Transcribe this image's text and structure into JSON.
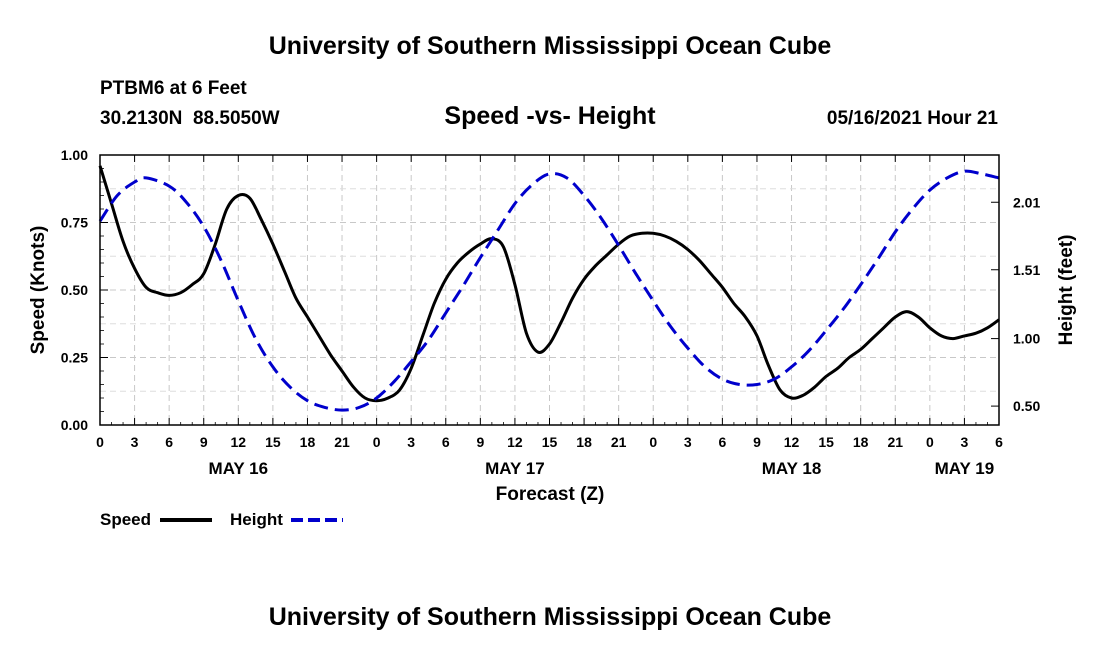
{
  "header": {
    "top_title": "University of Southern Mississippi Ocean Cube",
    "station": "PTBM6 at 6 Feet",
    "coords": "30.2130N  88.5050W",
    "chart_title": "Speed -vs- Height",
    "datetime": "05/16/2021 Hour 21",
    "bottom_title": "University of Southern Mississippi Ocean Cube"
  },
  "chart_data": {
    "type": "line",
    "title": "Speed -vs- Height",
    "xlabel": "Forecast (Z)",
    "ylabel_left": "Speed (Knots)",
    "ylabel_right": "Height (feet)",
    "x_range_hours": [
      0,
      78
    ],
    "ylim_left": [
      0,
      1.0
    ],
    "ylim_right": [
      0.36,
      2.36
    ],
    "left_ticks": [
      {
        "value": 0.0,
        "label": "0.00"
      },
      {
        "value": 0.25,
        "label": "0.25"
      },
      {
        "value": 0.5,
        "label": "0.50"
      },
      {
        "value": 0.75,
        "label": "0.75"
      },
      {
        "value": 1.0,
        "label": "1.00"
      }
    ],
    "right_ticks": [
      {
        "value": 0.5,
        "label": "0.50"
      },
      {
        "value": 1.0,
        "label": "1.00"
      },
      {
        "value": 1.51,
        "label": "1.51"
      },
      {
        "value": 2.01,
        "label": "2.01"
      }
    ],
    "x_ticks": [
      {
        "h": 0,
        "label": "0"
      },
      {
        "h": 3,
        "label": "3"
      },
      {
        "h": 6,
        "label": "6"
      },
      {
        "h": 9,
        "label": "9"
      },
      {
        "h": 12,
        "label": "12"
      },
      {
        "h": 15,
        "label": "15"
      },
      {
        "h": 18,
        "label": "18"
      },
      {
        "h": 21,
        "label": "21"
      },
      {
        "h": 24,
        "label": "0"
      },
      {
        "h": 27,
        "label": "3"
      },
      {
        "h": 30,
        "label": "6"
      },
      {
        "h": 33,
        "label": "9"
      },
      {
        "h": 36,
        "label": "12"
      },
      {
        "h": 39,
        "label": "15"
      },
      {
        "h": 42,
        "label": "18"
      },
      {
        "h": 45,
        "label": "21"
      },
      {
        "h": 48,
        "label": "0"
      },
      {
        "h": 51,
        "label": "3"
      },
      {
        "h": 54,
        "label": "6"
      },
      {
        "h": 57,
        "label": "9"
      },
      {
        "h": 60,
        "label": "12"
      },
      {
        "h": 63,
        "label": "15"
      },
      {
        "h": 66,
        "label": "18"
      },
      {
        "h": 69,
        "label": "21"
      },
      {
        "h": 72,
        "label": "0"
      },
      {
        "h": 75,
        "label": "3"
      },
      {
        "h": 78,
        "label": "6"
      }
    ],
    "date_labels": [
      {
        "h": 12,
        "label": "MAY 16"
      },
      {
        "h": 36,
        "label": "MAY 17"
      },
      {
        "h": 60,
        "label": "MAY 18"
      },
      {
        "h": 75,
        "label": "MAY 19"
      }
    ],
    "grid": true,
    "legend": [
      {
        "name": "Speed",
        "color": "#000000",
        "dash": "solid"
      },
      {
        "name": "Height",
        "color": "#0000cc",
        "dash": "dashed"
      }
    ],
    "series": [
      {
        "name": "Speed",
        "axis": "left",
        "color": "#000000",
        "points": [
          [
            0,
            0.96
          ],
          [
            1,
            0.82
          ],
          [
            2,
            0.68
          ],
          [
            3,
            0.58
          ],
          [
            4,
            0.51
          ],
          [
            5,
            0.49
          ],
          [
            6,
            0.48
          ],
          [
            7,
            0.49
          ],
          [
            8,
            0.52
          ],
          [
            9,
            0.56
          ],
          [
            10,
            0.67
          ],
          [
            11,
            0.8
          ],
          [
            12,
            0.85
          ],
          [
            13,
            0.84
          ],
          [
            14,
            0.76
          ],
          [
            15,
            0.67
          ],
          [
            16,
            0.57
          ],
          [
            17,
            0.47
          ],
          [
            18,
            0.4
          ],
          [
            19,
            0.33
          ],
          [
            20,
            0.26
          ],
          [
            21,
            0.2
          ],
          [
            22,
            0.14
          ],
          [
            23,
            0.1
          ],
          [
            24,
            0.09
          ],
          [
            25,
            0.1
          ],
          [
            26,
            0.13
          ],
          [
            27,
            0.21
          ],
          [
            28,
            0.33
          ],
          [
            29,
            0.45
          ],
          [
            30,
            0.54
          ],
          [
            31,
            0.6
          ],
          [
            32,
            0.64
          ],
          [
            33,
            0.67
          ],
          [
            34,
            0.69
          ],
          [
            35,
            0.66
          ],
          [
            36,
            0.52
          ],
          [
            37,
            0.34
          ],
          [
            38,
            0.27
          ],
          [
            39,
            0.3
          ],
          [
            40,
            0.38
          ],
          [
            41,
            0.47
          ],
          [
            42,
            0.54
          ],
          [
            43,
            0.59
          ],
          [
            44,
            0.63
          ],
          [
            45,
            0.67
          ],
          [
            46,
            0.7
          ],
          [
            47,
            0.71
          ],
          [
            48,
            0.71
          ],
          [
            49,
            0.7
          ],
          [
            50,
            0.68
          ],
          [
            51,
            0.65
          ],
          [
            52,
            0.61
          ],
          [
            53,
            0.56
          ],
          [
            54,
            0.51
          ],
          [
            55,
            0.45
          ],
          [
            56,
            0.4
          ],
          [
            57,
            0.33
          ],
          [
            58,
            0.22
          ],
          [
            59,
            0.13
          ],
          [
            60,
            0.1
          ],
          [
            61,
            0.11
          ],
          [
            62,
            0.14
          ],
          [
            63,
            0.18
          ],
          [
            64,
            0.21
          ],
          [
            65,
            0.25
          ],
          [
            66,
            0.28
          ],
          [
            67,
            0.32
          ],
          [
            68,
            0.36
          ],
          [
            69,
            0.4
          ],
          [
            70,
            0.42
          ],
          [
            71,
            0.4
          ],
          [
            72,
            0.36
          ],
          [
            73,
            0.33
          ],
          [
            74,
            0.32
          ],
          [
            75,
            0.33
          ],
          [
            76,
            0.34
          ],
          [
            77,
            0.36
          ],
          [
            78,
            0.39
          ]
        ]
      },
      {
        "name": "Height",
        "axis": "right",
        "color": "#0000cc",
        "points": [
          [
            0,
            1.87
          ],
          [
            1.5,
            2.06
          ],
          [
            3,
            2.16
          ],
          [
            4,
            2.19
          ],
          [
            6,
            2.13
          ],
          [
            7.5,
            2.01
          ],
          [
            9,
            1.83
          ],
          [
            10.5,
            1.58
          ],
          [
            12,
            1.28
          ],
          [
            13.5,
            1.0
          ],
          [
            15,
            0.79
          ],
          [
            16.5,
            0.64
          ],
          [
            18,
            0.54
          ],
          [
            19.5,
            0.49
          ],
          [
            21,
            0.47
          ],
          [
            22.5,
            0.49
          ],
          [
            24,
            0.56
          ],
          [
            25.5,
            0.68
          ],
          [
            27,
            0.83
          ],
          [
            28.5,
            0.99
          ],
          [
            30,
            1.19
          ],
          [
            31.5,
            1.39
          ],
          [
            33,
            1.6
          ],
          [
            34.5,
            1.8
          ],
          [
            36,
            2.0
          ],
          [
            37.5,
            2.14
          ],
          [
            39,
            2.22
          ],
          [
            40.5,
            2.19
          ],
          [
            42,
            2.06
          ],
          [
            43.5,
            1.89
          ],
          [
            45,
            1.69
          ],
          [
            46.5,
            1.48
          ],
          [
            48,
            1.28
          ],
          [
            49.5,
            1.09
          ],
          [
            51,
            0.93
          ],
          [
            52.5,
            0.79
          ],
          [
            54,
            0.7
          ],
          [
            55.5,
            0.66
          ],
          [
            57,
            0.66
          ],
          [
            58.5,
            0.7
          ],
          [
            60,
            0.79
          ],
          [
            61.5,
            0.91
          ],
          [
            63,
            1.06
          ],
          [
            64.5,
            1.22
          ],
          [
            66,
            1.4
          ],
          [
            67.5,
            1.59
          ],
          [
            69,
            1.79
          ],
          [
            70.5,
            1.96
          ],
          [
            72,
            2.1
          ],
          [
            73.5,
            2.19
          ],
          [
            75,
            2.24
          ],
          [
            76.5,
            2.22
          ],
          [
            78,
            2.19
          ]
        ]
      }
    ]
  }
}
